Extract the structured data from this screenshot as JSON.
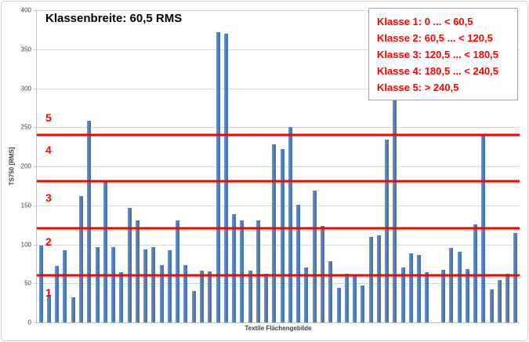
{
  "chart_data": {
    "type": "bar",
    "title": "Klassenbreite: 60,5 RMS",
    "xlabel": "Textile Flächengebilde",
    "ylabel": "TS750 [RMS]",
    "ylim": [
      0,
      400
    ],
    "yticks": [
      0,
      50,
      100,
      150,
      200,
      250,
      300,
      350,
      400
    ],
    "grid": true,
    "x_tick_labels_shown": false,
    "values": [
      99,
      35,
      72,
      92,
      32,
      162,
      258,
      97,
      180,
      96,
      64,
      147,
      131,
      93,
      97,
      73,
      92,
      131,
      73,
      40,
      66,
      65,
      372,
      370,
      139,
      131,
      66,
      131,
      62,
      228,
      222,
      250,
      151,
      70,
      169,
      124,
      78,
      44,
      62,
      60,
      47,
      110,
      112,
      234,
      285,
      70,
      88,
      86,
      64,
      0,
      67,
      95,
      90,
      68,
      126,
      240,
      42,
      54,
      62,
      115
    ],
    "class_boundary_lines": [
      60.5,
      120.5,
      180.5,
      240.5
    ],
    "class_zone_labels": [
      {
        "text": "1",
        "value": 38
      },
      {
        "text": "2",
        "value": 104
      },
      {
        "text": "3",
        "value": 160
      },
      {
        "text": "4",
        "value": 221
      },
      {
        "text": "5",
        "value": 262
      }
    ],
    "colors": {
      "bar": "#4F81BD",
      "bar_shade_dark": "#436D9F",
      "bar_shade_light": "#7099CC",
      "gridline": "#D9D9D9",
      "axis": "#BFBFBF",
      "class_line": "#FF0000",
      "legend_text": "#FF0000",
      "title_text": "#000000"
    },
    "legend_position": "top-right"
  },
  "legend": {
    "items": [
      "Klasse 1: 0 ... < 60,5",
      "Klasse 2: 60,5 ... < 120,5",
      "Klasse 3: 120,5 ... < 180,5",
      "Klasse 4: 180,5 ... < 240,5",
      "Klasse 5: > 240,5"
    ]
  }
}
